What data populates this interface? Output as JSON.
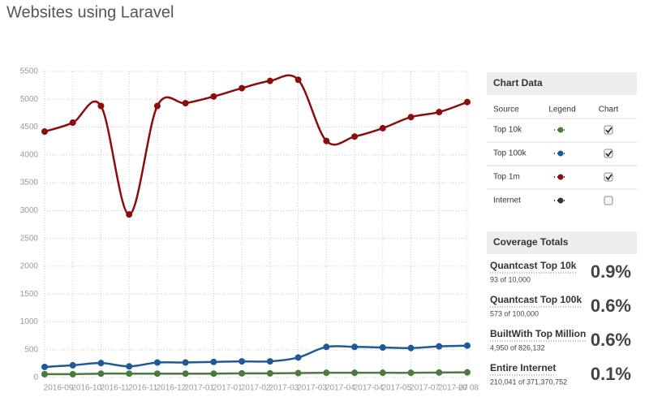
{
  "header": {
    "title": "Websites using Laravel"
  },
  "chart_data": {
    "type": "line",
    "categories": [
      "2016-09",
      "2016-10",
      "2016-11",
      "2016-11",
      "2016-12",
      "2017-01",
      "2017-01",
      "2017-02",
      "2017-03",
      "2017-03",
      "2017-04",
      "2017-04",
      "2017-05",
      "2017-07",
      "2017-07",
      "20 08"
    ],
    "ylim": [
      0,
      5500
    ],
    "yticks": [
      0,
      500,
      1000,
      1500,
      2000,
      2500,
      3000,
      3500,
      4000,
      4500,
      5000,
      5500
    ],
    "grid": true,
    "smooth": true,
    "series": [
      {
        "name": "Top 10k",
        "color": "#4a7a3d",
        "visible": true,
        "values": [
          60,
          60,
          70,
          70,
          70,
          70,
          70,
          75,
          75,
          80,
          85,
          85,
          85,
          85,
          90,
          93
        ]
      },
      {
        "name": "Top 100k",
        "color": "#1f5a96",
        "visible": true,
        "values": [
          190,
          220,
          260,
          200,
          270,
          270,
          280,
          290,
          290,
          360,
          550,
          550,
          540,
          530,
          560,
          573
        ]
      },
      {
        "name": "Top 1m",
        "color": "#8b0e0e",
        "visible": true,
        "values": [
          4420,
          4580,
          4880,
          2930,
          4880,
          4930,
          5050,
          5200,
          5330,
          5350,
          4250,
          4330,
          4480,
          4680,
          4770,
          4950
        ]
      },
      {
        "name": "Internet",
        "color": "#333333",
        "visible": false,
        "values": [
          null,
          null,
          null,
          null,
          null,
          null,
          null,
          null,
          null,
          null,
          null,
          null,
          null,
          null,
          null,
          null
        ]
      }
    ]
  },
  "sidebar": {
    "chart_data_title": "Chart Data",
    "columns": [
      "Source",
      "Legend",
      "Chart"
    ],
    "coverage_title": "Coverage Totals",
    "coverage": [
      {
        "label": "Quantcast Top 10k",
        "detail": "93 of 10,000",
        "value": "0.9%"
      },
      {
        "label": "Quantcast Top 100k",
        "detail": "573 of 100,000",
        "value": "0.6%"
      },
      {
        "label": "BuiltWith Top Million",
        "detail": "4,950 of 826,132",
        "value": "0.6%"
      },
      {
        "label": "Entire Internet",
        "detail": "210,041 of 371,370,752",
        "value": "0.1%"
      }
    ]
  }
}
